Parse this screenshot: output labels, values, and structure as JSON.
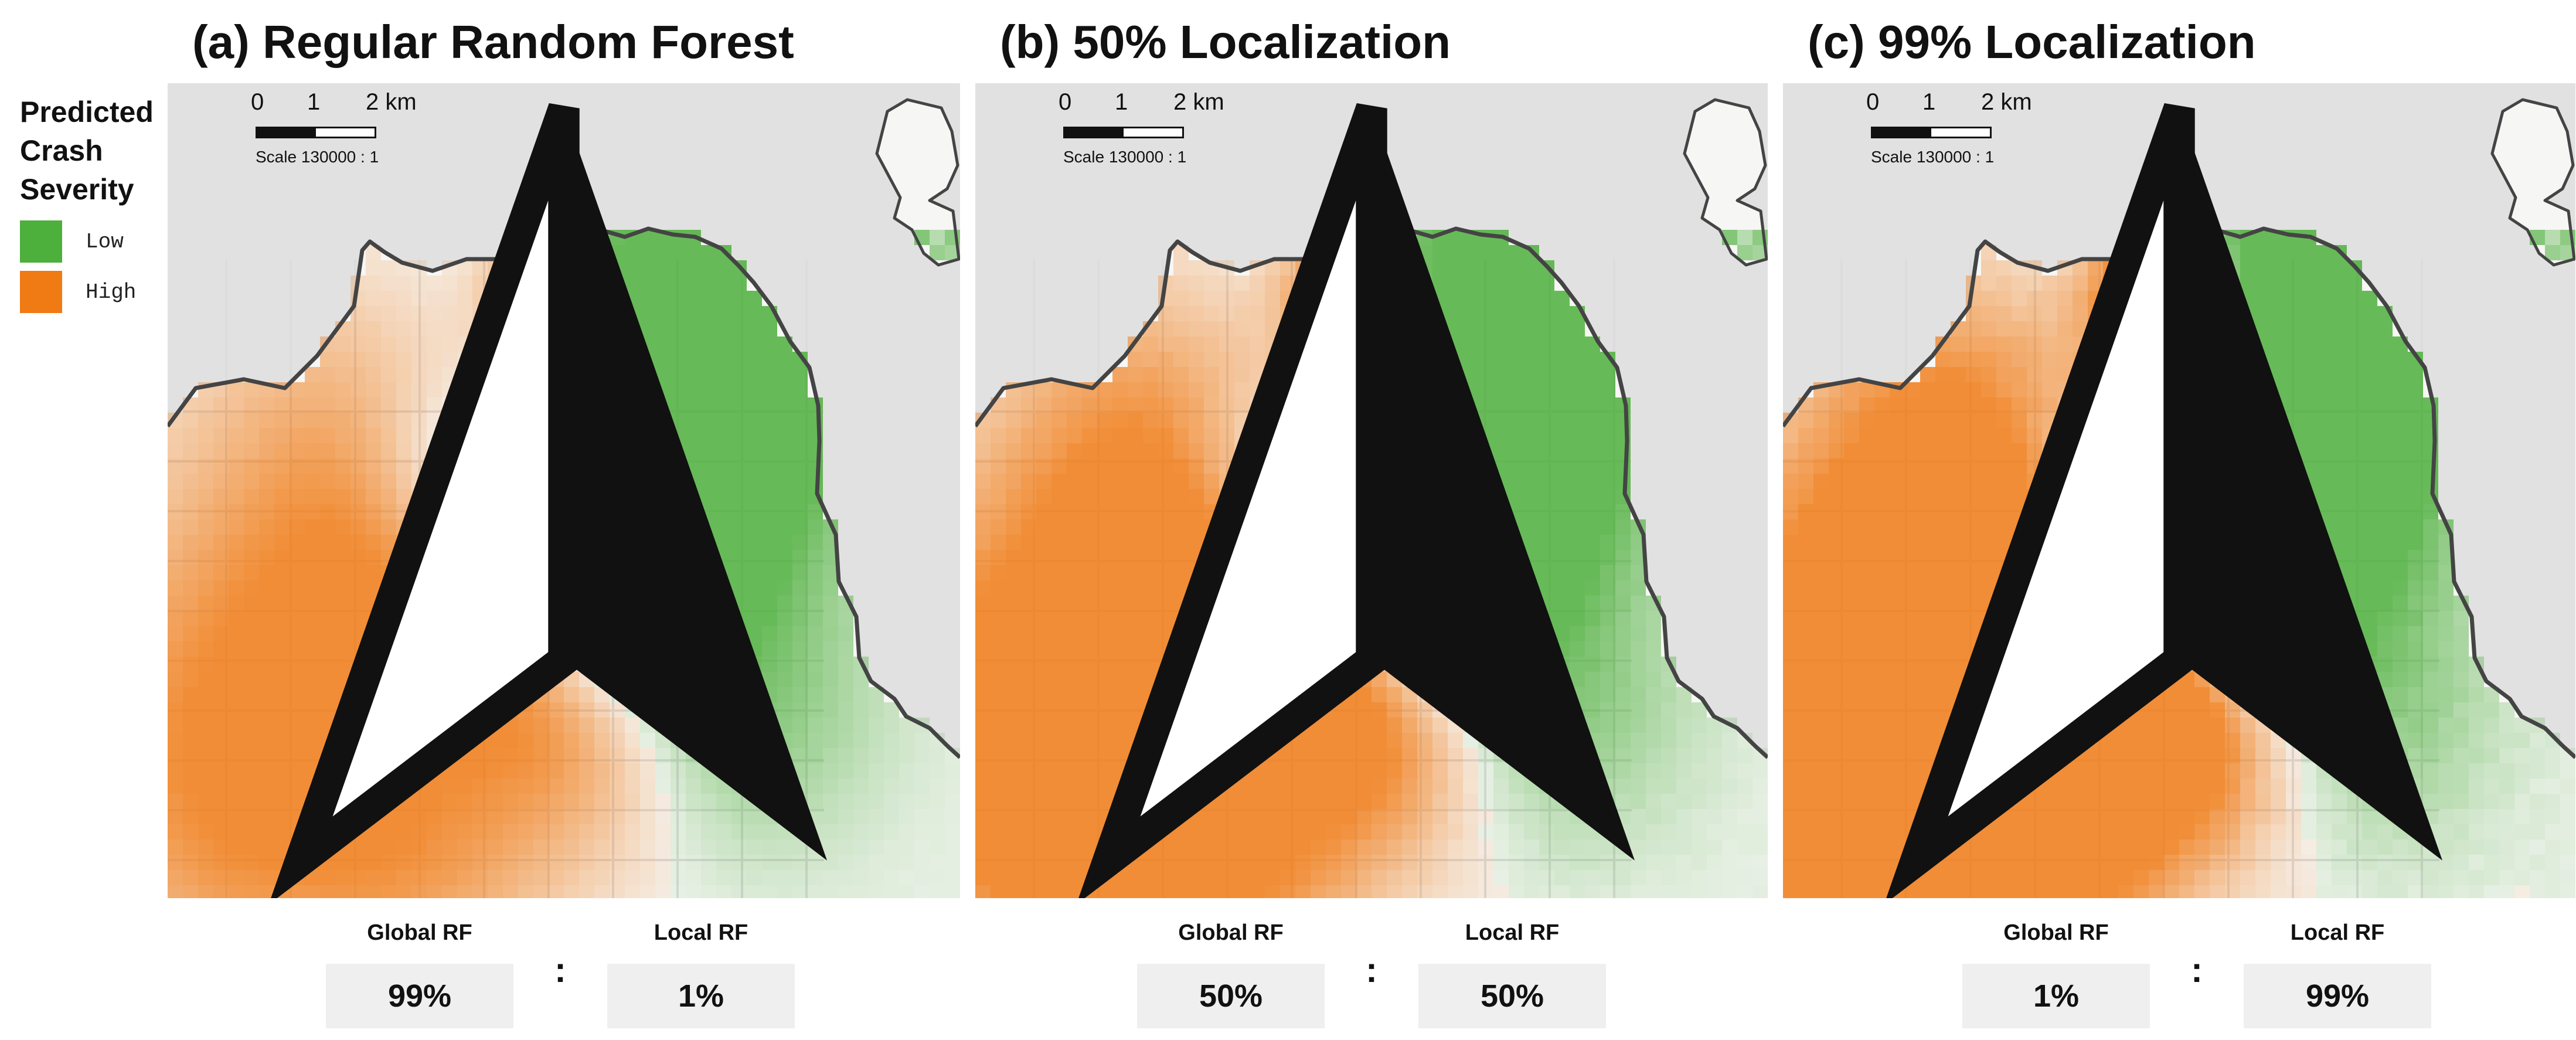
{
  "legend": {
    "title": "Predicted\nCrash\nSeverity",
    "items": [
      {
        "label": "Low",
        "color": "#4daf3c"
      },
      {
        "label": "High",
        "color": "#f07a14"
      }
    ]
  },
  "scale": {
    "ticks": [
      "0",
      "1",
      "2 km"
    ],
    "text": "Scale 130000 : 1"
  },
  "panels": [
    {
      "title": "(a) Regular Random Forest",
      "global_label": "Global RF",
      "local_label": "Local RF",
      "global_value": "99%",
      "local_value": "1%",
      "local_share": 0.01
    },
    {
      "title": "(b) 50% Localization",
      "global_label": "Global RF",
      "local_label": "Local RF",
      "global_value": "50%",
      "local_value": "50%",
      "local_share": 0.5
    },
    {
      "title": "(c) 99% Localization",
      "global_label": "Global RF",
      "local_label": "Local RF",
      "global_value": "1%",
      "local_value": "99%",
      "local_share": 0.99
    }
  ],
  "colors": {
    "low": "#4daf3c",
    "high": "#f07a14",
    "background": "#e1e1e1",
    "coast": "#444444"
  }
}
